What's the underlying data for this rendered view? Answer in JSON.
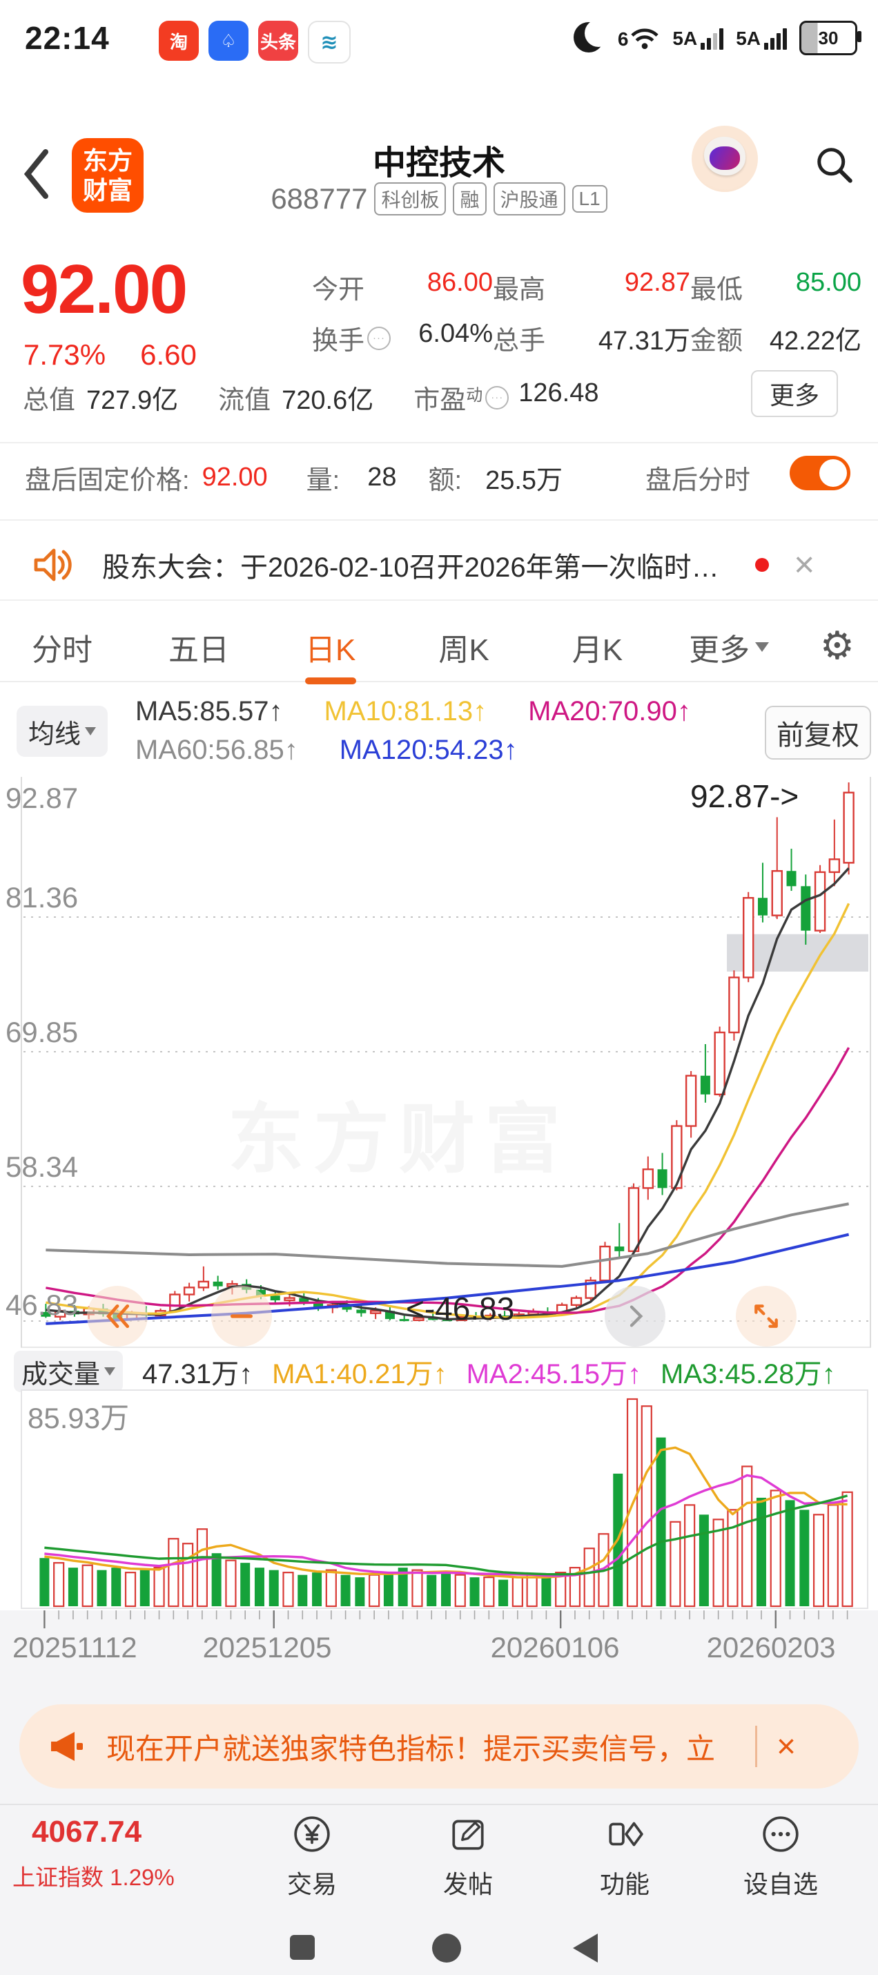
{
  "colors": {
    "up_red": "#d93a35",
    "down_green": "#15a23a",
    "price_red": "#f0281e",
    "value_green": "#0aa447",
    "accent_orange": "#ee6118",
    "ma5": "#3a3a3a",
    "ma10": "#f1c233",
    "ma20": "#ce1783",
    "ma60": "#8c8c8c",
    "ma120": "#2b3fd6",
    "vol_ma1": "#eda91c",
    "vol_ma2": "#df3bd4",
    "vol_ma3": "#1f9b30"
  },
  "status_bar": {
    "time": "22:14",
    "app1": "淘",
    "app3": "头条",
    "wifi": "6",
    "net1": "5A",
    "net2": "5A",
    "battery": "30"
  },
  "header": {
    "title": "中控技术",
    "code": "688777",
    "tags": [
      "科创板",
      "融",
      "沪股通",
      "L1"
    ],
    "logo_line1": "东方",
    "logo_line2": "财富"
  },
  "quote": {
    "price": "92.00",
    "change_pct": "7.73%",
    "change": "6.60",
    "stats": [
      {
        "label": "今开",
        "value": "86.00"
      },
      {
        "label": "最高",
        "value": "92.87"
      },
      {
        "label": "最低",
        "value": "85.00"
      },
      {
        "label": "换手",
        "value": "6.04%"
      },
      {
        "label": "总手",
        "value": "47.31万"
      },
      {
        "label": "金额",
        "value": "42.22亿"
      },
      {
        "label": "总值",
        "value": "727.9亿"
      },
      {
        "label": "流值",
        "value": "720.6亿"
      },
      {
        "label": "市盈",
        "sup": "动",
        "value": "126.48"
      }
    ],
    "more_label": "更多"
  },
  "after_hours": {
    "label": "盘后固定价格:",
    "price": "92.00",
    "vol_label": "量:",
    "vol": "28",
    "amt_label": "额:",
    "amt": "25.5万",
    "toggle_label": "盘后分时"
  },
  "announcement": {
    "text": "股东大会：于2026-02-10召开2026年第一次临时…",
    "close": "×"
  },
  "tabs": {
    "items": [
      "分时",
      "五日",
      "日K",
      "周K",
      "月K"
    ],
    "active_index": 2,
    "more": "更多"
  },
  "kline": {
    "ma_button": "均线",
    "adjust_label": "前复权",
    "legend": {
      "ma5": "MA5:85.57↑",
      "ma10": "MA10:81.13↑",
      "ma20": "MA20:70.90↑",
      "ma60": "MA60:56.85↑",
      "ma120": "MA120:54.23↑"
    }
  },
  "annotations": {
    "high": "92.87->",
    "low": "<-46.83"
  },
  "watermark": "东方财富",
  "volume": {
    "button": "成交量",
    "current": "47.31万↑",
    "ma1": "MA1:40.21万↑",
    "ma2": "MA2:45.15万↑",
    "ma3": "MA3:45.28万↑",
    "scale_label": "85.93万"
  },
  "x_axis": {
    "labels": [
      "20251112",
      "20251205",
      "20260106",
      "20260203"
    ],
    "label_indices": [
      0,
      16,
      36,
      51
    ]
  },
  "banner": {
    "text": "现在开户就送独家特色指标！提示买卖信号，立",
    "close": "×"
  },
  "bottom_nav": {
    "index_value": "4067.74",
    "index_label": "上证指数",
    "index_pct": "1.29%",
    "items": [
      "交易",
      "发帖",
      "功能",
      "设自选"
    ]
  },
  "chart_data": {
    "type": "candlestick",
    "title": "中控技术 688777 日K 前复权",
    "y_max": 92.87,
    "y_min": 46.83,
    "y_axis_labels": [
      "92.87",
      "81.36",
      "69.85",
      "58.34",
      "46.83"
    ],
    "grid_values": [
      81.36,
      69.85,
      58.34,
      46.83
    ],
    "candles": [
      [
        47.6,
        48.3,
        47.1,
        47.2
      ],
      [
        47.2,
        47.9,
        46.9,
        47.7
      ],
      [
        47.7,
        48.2,
        47.2,
        47.4
      ],
      [
        47.4,
        48.1,
        47.0,
        47.9
      ],
      [
        47.9,
        48.3,
        47.2,
        47.4
      ],
      [
        47.4,
        47.8,
        46.9,
        47.0
      ],
      [
        47.0,
        47.7,
        46.9,
        47.5
      ],
      [
        47.5,
        48.1,
        47.1,
        47.3
      ],
      [
        47.3,
        47.9,
        47.0,
        47.7
      ],
      [
        47.7,
        49.4,
        47.6,
        49.1
      ],
      [
        49.1,
        50.1,
        48.5,
        49.7
      ],
      [
        49.7,
        51.5,
        49.4,
        50.2
      ],
      [
        50.2,
        50.7,
        49.5,
        49.8
      ],
      [
        49.8,
        50.3,
        49.1,
        50.0
      ],
      [
        50.0,
        50.4,
        49.2,
        49.5
      ],
      [
        49.5,
        49.9,
        48.7,
        49.0
      ],
      [
        49.0,
        49.4,
        48.3,
        48.6
      ],
      [
        48.6,
        49.1,
        48.1,
        48.8
      ],
      [
        48.8,
        49.2,
        48.2,
        48.4
      ],
      [
        48.4,
        48.8,
        47.7,
        48.0
      ],
      [
        48.0,
        48.5,
        47.5,
        48.2
      ],
      [
        48.2,
        48.6,
        47.6,
        47.8
      ],
      [
        47.8,
        48.3,
        47.2,
        47.5
      ],
      [
        47.5,
        48.0,
        47.0,
        47.7
      ],
      [
        47.7,
        48.1,
        46.9,
        47.0
      ],
      [
        47.0,
        47.4,
        46.83,
        46.9
      ],
      [
        46.9,
        47.3,
        46.85,
        47.1
      ],
      [
        47.1,
        47.8,
        46.9,
        47.0
      ],
      [
        47.0,
        47.2,
        46.83,
        46.9
      ],
      [
        46.9,
        47.4,
        46.85,
        47.2
      ],
      [
        47.2,
        47.6,
        47.0,
        47.1
      ],
      [
        47.1,
        47.5,
        46.9,
        47.3
      ],
      [
        47.3,
        47.7,
        47.1,
        47.2
      ],
      [
        47.2,
        47.6,
        47.0,
        47.4
      ],
      [
        47.4,
        47.9,
        47.2,
        47.6
      ],
      [
        47.6,
        48.0,
        47.3,
        47.5
      ],
      [
        47.5,
        48.4,
        47.4,
        48.2
      ],
      [
        48.2,
        49.0,
        48.0,
        48.8
      ],
      [
        48.8,
        50.6,
        48.6,
        50.3
      ],
      [
        50.3,
        53.6,
        50.1,
        53.2
      ],
      [
        53.2,
        55.2,
        52.2,
        52.8
      ],
      [
        52.8,
        58.6,
        52.6,
        58.2
      ],
      [
        58.2,
        60.9,
        57.2,
        59.8
      ],
      [
        59.8,
        61.2,
        57.6,
        58.2
      ],
      [
        58.2,
        64.0,
        58.0,
        63.5
      ],
      [
        63.5,
        68.2,
        62.5,
        67.8
      ],
      [
        67.8,
        70.5,
        65.5,
        66.2
      ],
      [
        66.2,
        72.0,
        66.0,
        71.5
      ],
      [
        71.5,
        76.8,
        70.8,
        76.2
      ],
      [
        76.2,
        83.5,
        75.8,
        83.0
      ],
      [
        83.0,
        86.0,
        80.9,
        81.5
      ],
      [
        81.5,
        89.9,
        81.2,
        85.3
      ],
      [
        85.3,
        87.2,
        83.6,
        84.0
      ],
      [
        84.0,
        85.0,
        79.0,
        80.2
      ],
      [
        80.2,
        85.8,
        80.0,
        85.2
      ],
      [
        85.2,
        89.7,
        84.0,
        86.3
      ],
      [
        86.0,
        92.87,
        85.0,
        92.0
      ]
    ],
    "volumes": [
      20,
      18,
      16,
      17,
      15,
      16,
      14,
      15,
      16,
      28,
      26,
      32,
      22,
      19,
      18,
      16,
      15,
      14,
      13,
      14,
      15,
      13,
      12,
      13,
      14,
      16,
      15,
      13,
      14,
      13,
      12,
      12,
      11,
      12,
      13,
      12,
      14,
      16,
      24,
      30,
      55,
      85.93,
      83,
      70,
      35,
      42,
      38,
      36,
      40,
      58,
      45,
      48,
      44,
      40,
      38,
      42,
      47.31
    ],
    "volume_max": 85.93,
    "ma60_points": [
      [
        0,
        52.9
      ],
      [
        10,
        52.5
      ],
      [
        16,
        52.55
      ],
      [
        28,
        51.75
      ],
      [
        36,
        51.5
      ],
      [
        42,
        52.6
      ],
      [
        48,
        54.7
      ],
      [
        52,
        55.9
      ],
      [
        56,
        56.85
      ]
    ],
    "ma120_points": [
      [
        0,
        46.6
      ],
      [
        14,
        47.5
      ],
      [
        28,
        48.8
      ],
      [
        40,
        50.3
      ],
      [
        48,
        51.9
      ],
      [
        56,
        54.23
      ]
    ],
    "gap_box": {
      "start_index": 48,
      "top": 79.9,
      "bottom": 76.7
    },
    "pre_close_seed": {
      "start": 52.3,
      "step": -0.25,
      "count": 20
    },
    "pre_volume_seed": {
      "start": 29.5,
      "step": -0.5,
      "count": 20
    }
  }
}
